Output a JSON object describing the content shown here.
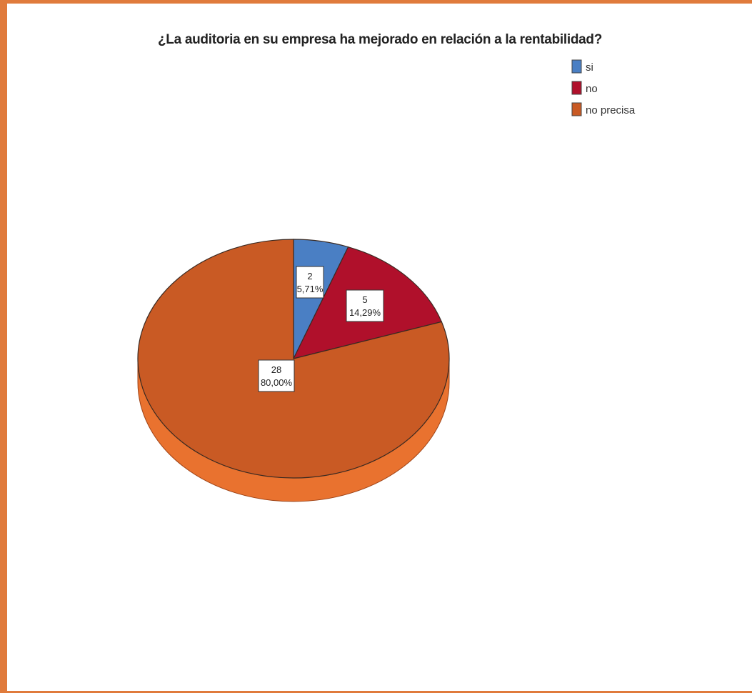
{
  "chart_data": {
    "type": "pie",
    "title": "¿La auditoria en su empresa ha mejorado en relación a la rentabilidad?",
    "slices": [
      {
        "name": "si",
        "value": 2,
        "percent_label": "5,71%",
        "color": "#4a7fc4"
      },
      {
        "name": "no",
        "value": 5,
        "percent_label": "14,29%",
        "color": "#b0102b"
      },
      {
        "name": "no precisa",
        "value": 28,
        "percent_label": "80,00%",
        "color": "#c95a24"
      }
    ],
    "legend_placement": "top-right",
    "frame_color": "#e07b3c",
    "side_color": "#e9722f",
    "three_d": true
  }
}
